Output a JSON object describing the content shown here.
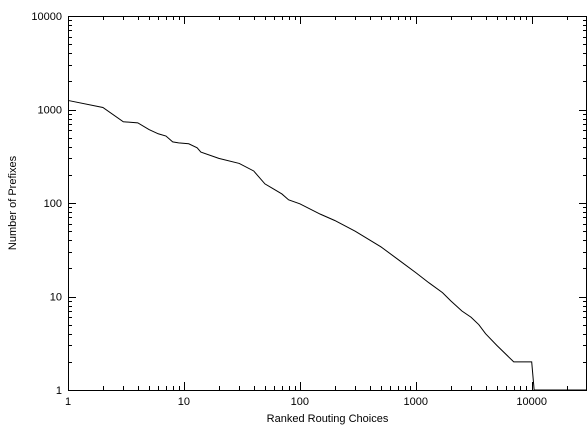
{
  "chart_data": {
    "type": "line",
    "xlabel": "Ranked Routing Choices",
    "ylabel": "Number of Prefixes",
    "xscale": "log",
    "yscale": "log",
    "xlim": [
      1,
      30000
    ],
    "ylim": [
      1,
      10000
    ],
    "grid": false,
    "x_ticks": [
      {
        "value": 1,
        "label": "1"
      },
      {
        "value": 10,
        "label": "10"
      },
      {
        "value": 100,
        "label": "100"
      },
      {
        "value": 1000,
        "label": "1000"
      },
      {
        "value": 10000,
        "label": "10000"
      }
    ],
    "y_ticks": [
      {
        "value": 1,
        "label": "1"
      },
      {
        "value": 10,
        "label": "10"
      },
      {
        "value": 100,
        "label": "100"
      },
      {
        "value": 1000,
        "label": "1000"
      },
      {
        "value": 10000,
        "label": "10000"
      }
    ],
    "series": [
      {
        "points": [
          [
            1,
            1250
          ],
          [
            2,
            1050
          ],
          [
            3,
            740
          ],
          [
            4,
            720
          ],
          [
            5,
            610
          ],
          [
            6,
            550
          ],
          [
            7,
            520
          ],
          [
            8,
            450
          ],
          [
            9,
            440
          ],
          [
            11,
            430
          ],
          [
            13,
            390
          ],
          [
            14,
            350
          ],
          [
            20,
            300
          ],
          [
            30,
            265
          ],
          [
            40,
            220
          ],
          [
            50,
            160
          ],
          [
            60,
            140
          ],
          [
            70,
            125
          ],
          [
            80,
            108
          ],
          [
            100,
            98
          ],
          [
            150,
            76
          ],
          [
            200,
            65
          ],
          [
            300,
            50
          ],
          [
            500,
            34
          ],
          [
            700,
            25
          ],
          [
            1000,
            18
          ],
          [
            1300,
            14
          ],
          [
            1700,
            11
          ],
          [
            2000,
            9
          ],
          [
            2500,
            7
          ],
          [
            3000,
            6
          ],
          [
            3500,
            5
          ],
          [
            4000,
            4
          ],
          [
            5000,
            3
          ],
          [
            7000,
            2
          ],
          [
            10000,
            2
          ],
          [
            10500,
            1
          ],
          [
            30000,
            1
          ]
        ]
      }
    ]
  }
}
